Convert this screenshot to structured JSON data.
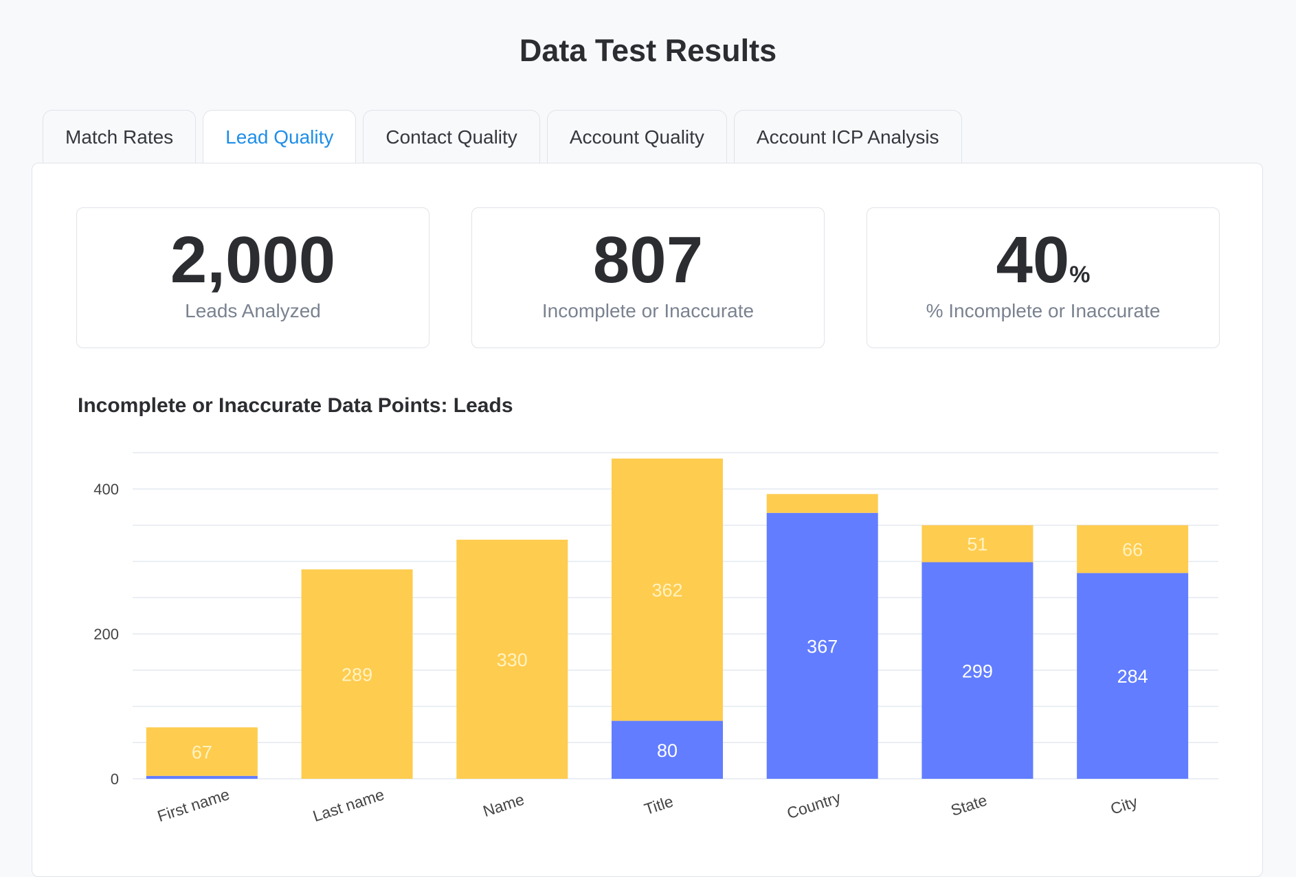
{
  "page": {
    "title": "Data Test Results"
  },
  "tabs": [
    {
      "label": "Match Rates",
      "active": false
    },
    {
      "label": "Lead Quality",
      "active": true
    },
    {
      "label": "Contact Quality",
      "active": false
    },
    {
      "label": "Account Quality",
      "active": false
    },
    {
      "label": "Account ICP Analysis",
      "active": false
    }
  ],
  "stats": [
    {
      "value": "2,000",
      "unit": "",
      "label": "Leads Analyzed"
    },
    {
      "value": "807",
      "unit": "",
      "label": "Incomplete or Inaccurate"
    },
    {
      "value": "40",
      "unit": "%",
      "label": "% Incomplete or Inaccurate"
    }
  ],
  "colors": {
    "accent": "#1f8ee8",
    "blue_series": "#627dff",
    "yellow_series": "#fecc4f"
  },
  "chart_data": {
    "type": "bar",
    "stacked": true,
    "title": "Incomplete or Inaccurate Data Points: Leads",
    "categories": [
      "First name",
      "Last name",
      "Name",
      "Title",
      "Country",
      "State",
      "City"
    ],
    "series": [
      {
        "values": [
          4,
          0,
          0,
          80,
          367,
          299,
          284
        ],
        "labels": [
          "",
          "",
          "",
          "80",
          "367",
          "299",
          "284"
        ],
        "color": "#627dff"
      },
      {
        "values": [
          67,
          289,
          330,
          362,
          26,
          51,
          66
        ],
        "labels": [
          "67",
          "289",
          "330",
          "362",
          "",
          "51",
          "66"
        ],
        "color": "#fecc4f"
      }
    ],
    "yticks": [
      "0",
      "200",
      "400"
    ],
    "ylim": [
      0,
      450
    ],
    "grid": true,
    "legend": "none"
  }
}
